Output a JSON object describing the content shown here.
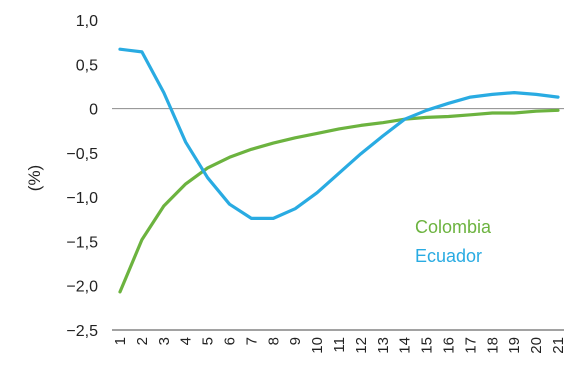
{
  "chart_data": {
    "type": "line",
    "ylabel": "(%)",
    "xlabel": "",
    "ylim": [
      -2.5,
      1.0
    ],
    "yticks": [
      "1,0",
      "0,5",
      "0",
      "−0,5",
      "−1,0",
      "−1,5",
      "−2,0",
      "−2,5"
    ],
    "yticks_values": [
      1.0,
      0.5,
      0,
      -0.5,
      -1.0,
      -1.5,
      -2.0,
      -2.5
    ],
    "categories": [
      "1",
      "2",
      "3",
      "4",
      "5",
      "6",
      "7",
      "8",
      "9",
      "10",
      "11",
      "12",
      "13",
      "14",
      "15",
      "16",
      "17",
      "18",
      "19",
      "20",
      "21"
    ],
    "series": [
      {
        "name": "Colombia",
        "color": "#6cb33f",
        "values": [
          -2.07,
          -1.48,
          -1.1,
          -0.85,
          -0.67,
          -0.55,
          -0.46,
          -0.39,
          -0.33,
          -0.28,
          -0.23,
          -0.19,
          -0.16,
          -0.12,
          -0.1,
          -0.09,
          -0.07,
          -0.05,
          -0.05,
          -0.03,
          -0.02
        ]
      },
      {
        "name": "Ecuador",
        "color": "#29abe2",
        "values": [
          0.67,
          0.64,
          0.18,
          -0.38,
          -0.78,
          -1.08,
          -1.24,
          -1.24,
          -1.13,
          -0.95,
          -0.73,
          -0.51,
          -0.31,
          -0.12,
          -0.02,
          0.06,
          0.13,
          0.16,
          0.18,
          0.16,
          0.13
        ]
      }
    ],
    "zero_line": true,
    "grid": false,
    "legend_position": "bottom-right"
  }
}
